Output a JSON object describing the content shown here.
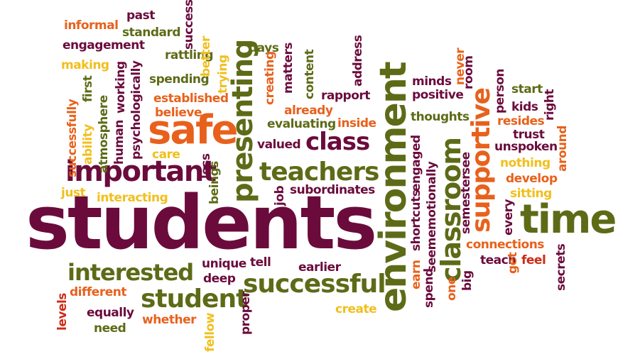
{
  "palette": {
    "maroon": "#6b0b3c",
    "orange": "#e8611c",
    "olive": "#5d6b17",
    "yellow": "#f1bf1d",
    "red": "#d02a16"
  },
  "words": {
    "students": "students",
    "environment": "environment",
    "time": "time",
    "safe": "safe",
    "presenting": "presenting",
    "important": "important",
    "teachers": "teachers",
    "classroom": "classroom",
    "supportive": "supportive",
    "class": "class",
    "successful": "successful",
    "interested": "interested",
    "student": "student",
    "informal": "informal",
    "past": "past",
    "standard": "standard",
    "success": "success",
    "engagement": "engagement",
    "better": "better",
    "rattling": "rattling",
    "days": "days",
    "making": "making",
    "trying": "trying",
    "spending": "spending",
    "psychologically": "psychologically",
    "working": "working",
    "first": "first",
    "successfully": "successfully",
    "human": "human",
    "atmosphere": "atmosphere",
    "ability": "ability",
    "established": "established",
    "believe": "believe",
    "creating": "creating",
    "matters": "matters",
    "content": "content",
    "address": "address",
    "rapport": "rapport",
    "already": "already",
    "inside": "inside",
    "evaluating": "evaluating",
    "valued": "valued",
    "minds": "minds",
    "never": "never",
    "room": "room",
    "positive": "positive",
    "person": "person",
    "start": "start",
    "kids": "kids",
    "right": "right",
    "thoughts": "thoughts",
    "resides": "resides",
    "trust": "trust",
    "engaged": "engaged",
    "around": "around",
    "unspoken": "unspoken",
    "care": "care",
    "less": "less",
    "beings": "beings",
    "nothing": "nothing",
    "see": "see",
    "develop": "develop",
    "just": "just",
    "interacting": "interacting",
    "job": "job",
    "subordinates": "subordinates",
    "emotionally": "emotionally",
    "sitting": "sitting",
    "shortcuts": "shortcuts",
    "semester": "semester",
    "every": "every",
    "seem": "seem",
    "earn": "earn",
    "connections": "connections",
    "unique": "unique",
    "tell": "tell",
    "earlier": "earlier",
    "deep": "deep",
    "different": "different",
    "levels": "levels",
    "equally": "equally",
    "need": "need",
    "whether": "whether",
    "fellow": "fellow",
    "proper": "proper",
    "create": "create",
    "spend": "spend",
    "one": "one",
    "big": "big",
    "teach": "teach",
    "get": "get",
    "feel": "feel",
    "secrets": "secrets"
  }
}
